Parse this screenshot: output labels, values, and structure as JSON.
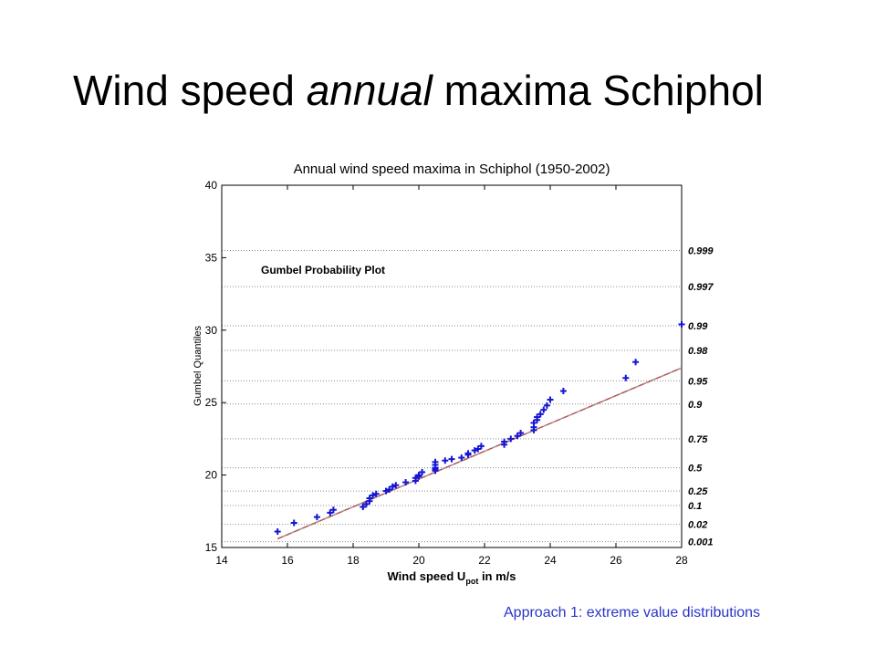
{
  "slide": {
    "title_pre": "Wind speed ",
    "title_italic": "annual",
    "title_post": " maxima Schiphol",
    "footer": "Approach 1: extreme value distributions"
  },
  "chart_data": {
    "type": "scatter",
    "title": "Annual wind speed maxima in Schiphol (1950-2002)",
    "annotation": "Gumbel Probability Plot",
    "xlabel_main": "Wind speed U",
    "xlabel_sub": "pot",
    "xlabel_tail": " in m/s",
    "ylabel": "Gumbel Quantiles",
    "xlim": [
      14,
      28
    ],
    "ylim": [
      15,
      40
    ],
    "xticks": [
      14,
      16,
      18,
      20,
      22,
      24,
      26,
      28
    ],
    "yticks": [
      15,
      20,
      25,
      30,
      35,
      40
    ],
    "grid": "horizontal dotted at probability levels",
    "probability_levels": [
      {
        "label": "0.999",
        "y": 35.5
      },
      {
        "label": "0.997",
        "y": 33.0
      },
      {
        "label": "0.99",
        "y": 30.3
      },
      {
        "label": "0.98",
        "y": 28.6
      },
      {
        "label": "0.95",
        "y": 26.5
      },
      {
        "label": "0.9",
        "y": 24.9
      },
      {
        "label": "0.75",
        "y": 22.5
      },
      {
        "label": "0.5",
        "y": 20.5
      },
      {
        "label": "0.25",
        "y": 18.9
      },
      {
        "label": "0.1",
        "y": 17.9
      },
      {
        "label": "0.02",
        "y": 16.6
      },
      {
        "label": "0.001",
        "y": 15.4
      }
    ],
    "fit_line": {
      "x": [
        15.7,
        28.0
      ],
      "y": [
        15.6,
        27.4
      ]
    },
    "points": {
      "x": [
        15.7,
        16.2,
        16.9,
        17.3,
        17.4,
        18.3,
        18.4,
        18.5,
        18.5,
        18.6,
        18.7,
        19.0,
        19.1,
        19.2,
        19.3,
        19.6,
        19.9,
        19.9,
        20.0,
        20.0,
        20.1,
        20.5,
        20.5,
        20.5,
        20.5,
        20.5,
        20.8,
        21.0,
        21.3,
        21.5,
        21.5,
        21.7,
        21.8,
        21.9,
        22.6,
        22.6,
        22.8,
        23.0,
        23.1,
        23.5,
        23.5,
        23.5,
        23.6,
        23.6,
        23.7,
        23.8,
        23.9,
        24.0,
        24.4,
        26.3,
        26.6,
        28.0
      ],
      "y": [
        16.1,
        16.7,
        17.1,
        17.4,
        17.6,
        17.8,
        18.0,
        18.2,
        18.4,
        18.6,
        18.7,
        18.9,
        19.0,
        19.2,
        19.3,
        19.5,
        19.6,
        19.8,
        19.9,
        20.0,
        20.2,
        20.3,
        20.4,
        20.5,
        20.7,
        20.9,
        21.0,
        21.1,
        21.2,
        21.4,
        21.5,
        21.7,
        21.8,
        22.0,
        22.1,
        22.3,
        22.5,
        22.7,
        22.9,
        23.1,
        23.3,
        23.6,
        23.8,
        24.0,
        24.2,
        24.5,
        24.8,
        25.2,
        25.8,
        26.7,
        27.8,
        30.4
      ]
    }
  }
}
